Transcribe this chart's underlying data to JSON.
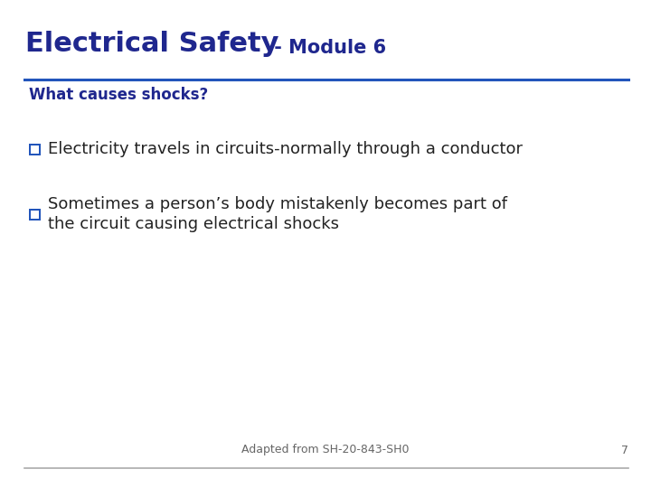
{
  "title_main": "Electrical Safety",
  "title_dash": " - Module 6",
  "subtitle": "What causes shocks?",
  "bullet1": "Electricity travels in circuits-normally through a conductor",
  "bullet2_line1": "Sometimes a person’s body mistakenly becomes part of",
  "bullet2_line2": "the circuit causing electrical shocks",
  "footer": "Adapted from SH-20-843-SH0",
  "page_number": "7",
  "title_color": "#1F278E",
  "subtitle_color": "#1F278E",
  "bullet_text_color": "#222222",
  "line_color": "#2255BB",
  "footer_color": "#666666",
  "bg_color": "#FFFFFF",
  "checkbox_color": "#2255BB",
  "title_main_fontsize": 22,
  "title_dash_fontsize": 15,
  "subtitle_fontsize": 12,
  "bullet_fontsize": 13,
  "footer_fontsize": 9
}
